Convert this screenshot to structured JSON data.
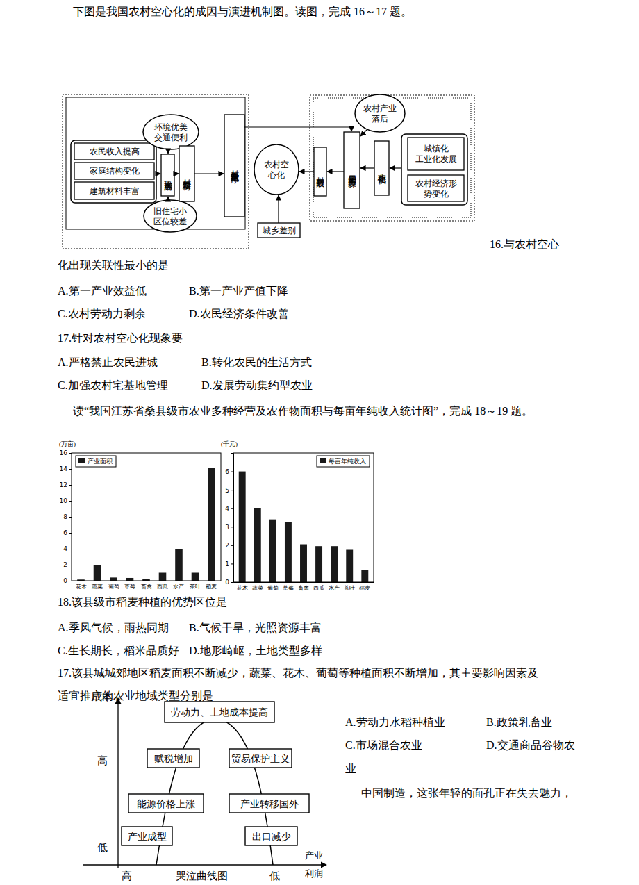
{
  "intro1": "下图是我国农村空心化的成因与演进机制图。读图，完成 16～17 题。",
  "diagram": {
    "nodes": [
      {
        "lines": [
          "农民收入提高"
        ]
      },
      {
        "lines": [
          "家庭结构变化"
        ]
      },
      {
        "lines": [
          "建筑材料丰富"
        ]
      },
      {
        "lines": [
          "环境优美",
          "交通便利"
        ]
      },
      {
        "lines": [
          "旧住宅小",
          "区位较差"
        ]
      },
      {
        "lines": [
          "建房高潮"
        ]
      },
      {
        "lines": [
          "村外新建房"
        ]
      },
      {
        "lines": [
          "村外新房杂乱无序"
        ]
      },
      {
        "lines": [
          "农村空",
          "心化"
        ]
      },
      {
        "lines": [
          "城乡差别"
        ]
      },
      {
        "lines": [
          "村内衰败"
        ]
      },
      {
        "lines": [
          "农村产业",
          "落后"
        ]
      },
      {
        "lines": [
          "房屋闲置与废弃"
        ]
      },
      {
        "lines": [
          "非农化加快"
        ]
      },
      {
        "lines": [
          "城镇化",
          "工业化发展"
        ]
      },
      {
        "lines": [
          "农村经济形",
          "势变化"
        ]
      }
    ]
  },
  "questions": [
    {
      "stem": [
        "16.与农村空心",
        "化出现关联性最小的是"
      ],
      "options": [
        "A.第一产业效益低",
        "B.第一产业产值下降",
        "C.农村劳动力剩余",
        "D.农民经济条件改善"
      ]
    },
    {
      "stem": [
        "17.针对农村空心化现象要"
      ],
      "options": [
        "A.严格禁止农民进城",
        "B.转化农民的生活方式",
        "C.加强农村宅基地管理",
        "D.发展劳动集约型农业"
      ]
    },
    {
      "stem": [
        "18.该县级市稻麦种植的优势区位是"
      ],
      "options": [
        "A.季风气候，雨热同期",
        "B.气候干旱，光照资源丰富",
        "C.生长期长，稻米品质好",
        "D.地形崎岖，土地类型多样"
      ]
    },
    {
      "stem": [
        "17.该县城城郊地区稻麦面积不断减少，蔬菜、花木、葡萄等种植面积不断增加，其主要影响因素及",
        "适宜推广的农业地域类型分别是"
      ],
      "options": [
        "A.劳动力水稻种植业",
        "B.政策乳畜业",
        "C.市场混合农业",
        "D.交通商品谷物农业"
      ]
    }
  ],
  "intro2": "读“我国江苏省桑县级市农业多种经营及农作物面积与每亩年纯收入统计图”，完成 18～19 题。",
  "chart_data": [
    {
      "type": "bar",
      "ylabel": "(万亩)",
      "categories": [
        "花木",
        "蔬菜",
        "葡萄",
        "草莓",
        "畜禽",
        "西瓜",
        "水产",
        "茶叶",
        "稻麦"
      ],
      "series": [
        {
          "name": "产业面积",
          "color": "#1a1a1a",
          "values": [
            0.15,
            2.0,
            0.4,
            0.35,
            0.2,
            1.0,
            4.0,
            1.0,
            14.1
          ]
        }
      ],
      "ylim": [
        0,
        16
      ],
      "yticks": [
        0,
        2,
        4,
        6,
        8,
        10,
        12,
        14,
        16
      ],
      "grid": false,
      "legend": "upper left"
    },
    {
      "type": "bar",
      "ylabel": "(千元)",
      "categories": [
        "花木",
        "蔬菜",
        "葡萄",
        "草莓",
        "畜禽",
        "西瓜",
        "水产",
        "茶叶",
        "稻麦"
      ],
      "series": [
        {
          "name": "每亩年纯收入",
          "color": "#1a1a1a",
          "values": [
            6.0,
            4.0,
            3.4,
            3.25,
            2.05,
            1.95,
            1.95,
            1.75,
            0.65
          ]
        }
      ],
      "ylim": [
        0,
        7
      ],
      "yticks": [
        0,
        1,
        2,
        3,
        4,
        5,
        6
      ],
      "grid": false,
      "legend": "upper right"
    }
  ],
  "tail": "中国制造，这张年轻的面孔正在失去魅力，",
  "curve": {
    "y_label": "成本",
    "y_ends": [
      "高",
      "低"
    ],
    "x_ends": [
      "高",
      "低"
    ],
    "title": "哭泣曲线图",
    "x_label": [
      "产业",
      "利润"
    ],
    "boxes": [
      "劳动力、土地成本提高",
      "赋税增加",
      "贸易保护主义",
      "能源价格上涨",
      "产业转移国外",
      "产业成型",
      "出口减少"
    ]
  }
}
